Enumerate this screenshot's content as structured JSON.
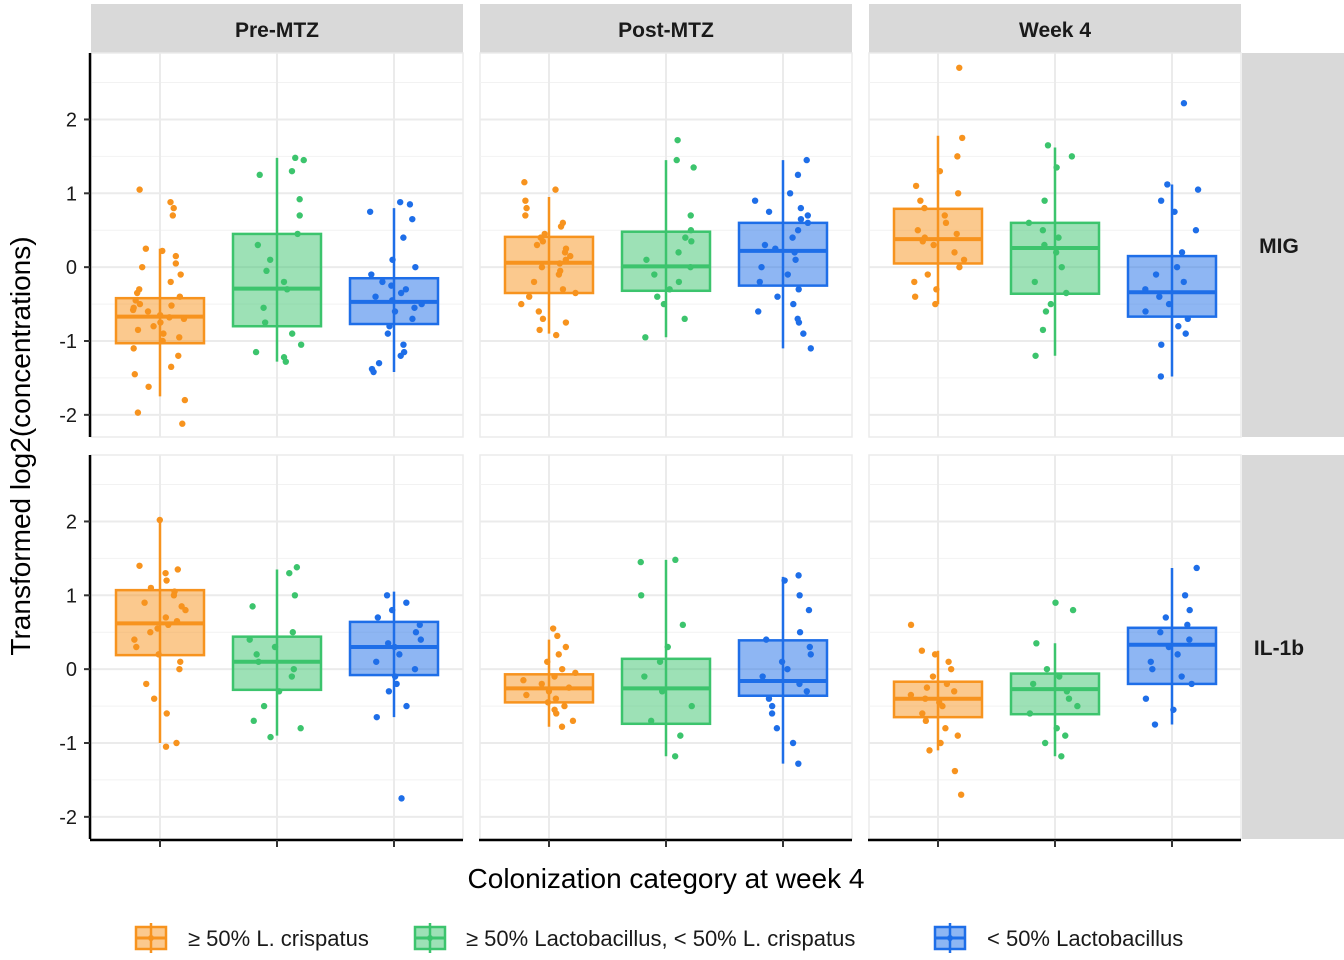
{
  "chart_data": {
    "type": "box",
    "xlabel": "Colonization category at week 4",
    "ylabel": "Transformed log2(concentrations)",
    "ylim": [
      -2.3,
      2.9
    ],
    "yticks": [
      -2,
      -1,
      0,
      1,
      2
    ],
    "ytick_labels": [
      "-2",
      "-1",
      "0",
      "1",
      "2"
    ],
    "grid": true,
    "legend_position": "bottom",
    "columns": [
      "Pre-MTZ",
      "Post-MTZ",
      "Week 4"
    ],
    "rows": [
      "MIG",
      "IL-1b"
    ],
    "series": [
      {
        "name": "≥ 50% L. crispatus",
        "color": "#F7931E"
      },
      {
        "name": "≥ 50% Lactobacillus, < 50% L. crispatus",
        "color": "#3CC46D"
      },
      {
        "name": "< 50% Lactobacillus",
        "color": "#1E6EE8"
      }
    ],
    "panels": [
      {
        "row": "MIG",
        "column": "Pre-MTZ",
        "boxes": [
          {
            "q1": -1.03,
            "median": -0.67,
            "q3": -0.42,
            "whisker_low": -1.75,
            "whisker_high": 0.25,
            "points": [
              -2.12,
              -1.97,
              -1.8,
              -1.62,
              -1.45,
              -1.35,
              -1.2,
              -1.1,
              -1.0,
              -0.95,
              -0.9,
              -0.85,
              -0.8,
              -0.75,
              -0.7,
              -0.68,
              -0.65,
              -0.6,
              -0.58,
              -0.55,
              -0.52,
              -0.5,
              -0.45,
              -0.4,
              -0.35,
              -0.3,
              -0.2,
              -0.1,
              0.0,
              0.05,
              0.15,
              0.22,
              0.25,
              0.7,
              0.8,
              0.88,
              1.05
            ]
          },
          {
            "q1": -0.8,
            "median": -0.29,
            "q3": 0.45,
            "whisker_low": -1.28,
            "whisker_high": 1.48,
            "points": [
              -1.28,
              -1.22,
              -1.15,
              -1.05,
              -0.9,
              -0.75,
              -0.55,
              -0.3,
              -0.2,
              -0.05,
              0.1,
              0.3,
              0.45,
              0.7,
              0.92,
              1.25,
              1.3,
              1.45,
              1.48
            ]
          },
          {
            "q1": -0.77,
            "median": -0.47,
            "q3": -0.15,
            "whisker_low": -1.42,
            "whisker_high": 0.8,
            "points": [
              -1.42,
              -1.38,
              -1.3,
              -1.2,
              -1.15,
              -1.05,
              -0.9,
              -0.8,
              -0.7,
              -0.6,
              -0.55,
              -0.5,
              -0.45,
              -0.4,
              -0.35,
              -0.3,
              -0.25,
              -0.2,
              -0.1,
              0.0,
              0.1,
              0.4,
              0.65,
              0.75,
              0.85,
              0.88
            ]
          }
        ]
      },
      {
        "row": "MIG",
        "column": "Post-MTZ",
        "boxes": [
          {
            "q1": -0.35,
            "median": 0.06,
            "q3": 0.41,
            "whisker_low": -0.9,
            "whisker_high": 0.95,
            "points": [
              -0.92,
              -0.85,
              -0.75,
              -0.7,
              -0.6,
              -0.5,
              -0.4,
              -0.35,
              -0.3,
              -0.2,
              -0.1,
              -0.05,
              0.0,
              0.05,
              0.1,
              0.15,
              0.2,
              0.25,
              0.3,
              0.35,
              0.4,
              0.45,
              0.55,
              0.6,
              0.7,
              0.8,
              0.9,
              1.05,
              1.15
            ]
          },
          {
            "q1": -0.32,
            "median": 0.01,
            "q3": 0.48,
            "whisker_low": -0.95,
            "whisker_high": 1.45,
            "points": [
              -0.95,
              -0.7,
              -0.5,
              -0.4,
              -0.3,
              -0.2,
              -0.1,
              0.0,
              0.1,
              0.2,
              0.35,
              0.4,
              0.5,
              0.7,
              1.35,
              1.45,
              1.72
            ]
          },
          {
            "q1": -0.25,
            "median": 0.22,
            "q3": 0.6,
            "whisker_low": -1.1,
            "whisker_high": 1.45,
            "points": [
              -1.1,
              -0.9,
              -0.75,
              -0.7,
              -0.6,
              -0.5,
              -0.4,
              -0.3,
              -0.2,
              -0.1,
              0.0,
              0.1,
              0.2,
              0.25,
              0.3,
              0.4,
              0.5,
              0.6,
              0.65,
              0.7,
              0.75,
              0.8,
              0.9,
              1.0,
              1.25,
              1.45
            ]
          }
        ]
      },
      {
        "row": "MIG",
        "column": "Week 4",
        "boxes": [
          {
            "q1": 0.05,
            "median": 0.38,
            "q3": 0.79,
            "whisker_low": -0.5,
            "whisker_high": 1.78,
            "points": [
              -0.5,
              -0.4,
              -0.3,
              -0.2,
              -0.1,
              0.0,
              0.1,
              0.2,
              0.3,
              0.35,
              0.4,
              0.45,
              0.5,
              0.6,
              0.7,
              0.8,
              0.9,
              1.0,
              1.1,
              1.3,
              1.5,
              1.75,
              2.7
            ]
          },
          {
            "q1": -0.36,
            "median": 0.26,
            "q3": 0.6,
            "whisker_low": -1.2,
            "whisker_high": 1.62,
            "points": [
              -1.2,
              -0.85,
              -0.6,
              -0.5,
              -0.35,
              -0.2,
              0.0,
              0.2,
              0.3,
              0.4,
              0.5,
              0.6,
              0.9,
              1.35,
              1.5,
              1.65
            ]
          },
          {
            "q1": -0.67,
            "median": -0.34,
            "q3": 0.15,
            "whisker_low": -1.48,
            "whisker_high": 1.12,
            "points": [
              -1.48,
              -1.05,
              -0.9,
              -0.8,
              -0.7,
              -0.6,
              -0.5,
              -0.4,
              -0.3,
              -0.2,
              -0.1,
              0.0,
              0.2,
              0.5,
              0.75,
              0.9,
              1.05,
              1.12,
              2.22
            ]
          }
        ]
      },
      {
        "row": "IL-1b",
        "column": "Pre-MTZ",
        "boxes": [
          {
            "q1": 0.19,
            "median": 0.62,
            "q3": 1.07,
            "whisker_low": -1.0,
            "whisker_high": 2.0,
            "points": [
              -1.05,
              -1.0,
              -0.6,
              -0.4,
              -0.2,
              0.0,
              0.1,
              0.2,
              0.3,
              0.4,
              0.5,
              0.55,
              0.6,
              0.65,
              0.7,
              0.8,
              0.85,
              0.9,
              1.0,
              1.05,
              1.1,
              1.2,
              1.3,
              1.35,
              1.4,
              2.02
            ]
          },
          {
            "q1": -0.28,
            "median": 0.1,
            "q3": 0.44,
            "whisker_low": -0.9,
            "whisker_high": 1.35,
            "points": [
              -0.92,
              -0.8,
              -0.7,
              -0.5,
              -0.3,
              -0.1,
              0.0,
              0.1,
              0.2,
              0.3,
              0.4,
              0.5,
              0.85,
              1.0,
              1.3,
              1.38
            ]
          },
          {
            "q1": -0.08,
            "median": 0.3,
            "q3": 0.64,
            "whisker_low": -0.65,
            "whisker_high": 1.05,
            "points": [
              -1.75,
              -0.65,
              -0.5,
              -0.3,
              -0.2,
              -0.1,
              0.0,
              0.1,
              0.2,
              0.3,
              0.35,
              0.4,
              0.5,
              0.6,
              0.7,
              0.8,
              0.9,
              1.0
            ]
          }
        ]
      },
      {
        "row": "IL-1b",
        "column": "Post-MTZ",
        "boxes": [
          {
            "q1": -0.45,
            "median": -0.26,
            "q3": -0.07,
            "whisker_low": -0.78,
            "whisker_high": 0.4,
            "points": [
              -0.78,
              -0.7,
              -0.6,
              -0.55,
              -0.5,
              -0.45,
              -0.4,
              -0.35,
              -0.3,
              -0.25,
              -0.2,
              -0.15,
              -0.1,
              -0.05,
              0.0,
              0.1,
              0.2,
              0.3,
              0.45,
              0.55
            ]
          },
          {
            "q1": -0.74,
            "median": -0.26,
            "q3": 0.14,
            "whisker_low": -1.18,
            "whisker_high": 1.48,
            "points": [
              -1.18,
              -0.9,
              -0.7,
              -0.5,
              -0.3,
              -0.1,
              0.1,
              0.3,
              0.6,
              1.0,
              1.45,
              1.48
            ]
          },
          {
            "q1": -0.36,
            "median": -0.16,
            "q3": 0.39,
            "whisker_low": -1.28,
            "whisker_high": 1.25,
            "points": [
              -1.28,
              -1.0,
              -0.8,
              -0.6,
              -0.5,
              -0.4,
              -0.3,
              -0.2,
              -0.1,
              0.0,
              0.1,
              0.2,
              0.3,
              0.4,
              0.5,
              0.8,
              1.0,
              1.2,
              1.27
            ]
          }
        ]
      },
      {
        "row": "IL-1b",
        "column": "Week 4",
        "boxes": [
          {
            "q1": -0.65,
            "median": -0.4,
            "q3": -0.17,
            "whisker_low": -1.1,
            "whisker_high": 0.25,
            "points": [
              -1.7,
              -1.38,
              -1.1,
              -1.0,
              -0.9,
              -0.8,
              -0.7,
              -0.6,
              -0.5,
              -0.45,
              -0.4,
              -0.35,
              -0.3,
              -0.25,
              -0.2,
              -0.1,
              0.0,
              0.1,
              0.2,
              0.25,
              0.6
            ]
          },
          {
            "q1": -0.61,
            "median": -0.27,
            "q3": -0.06,
            "whisker_low": -1.18,
            "whisker_high": 0.35,
            "points": [
              -1.18,
              -1.0,
              -0.9,
              -0.8,
              -0.6,
              -0.5,
              -0.4,
              -0.3,
              -0.2,
              -0.1,
              0.0,
              0.35,
              0.8,
              0.9
            ]
          },
          {
            "q1": -0.2,
            "median": 0.33,
            "q3": 0.56,
            "whisker_low": -0.75,
            "whisker_high": 1.37,
            "points": [
              -0.75,
              -0.55,
              -0.4,
              -0.2,
              -0.1,
              0.0,
              0.1,
              0.2,
              0.3,
              0.4,
              0.5,
              0.6,
              0.7,
              0.8,
              1.0,
              1.37
            ]
          }
        ]
      }
    ]
  }
}
